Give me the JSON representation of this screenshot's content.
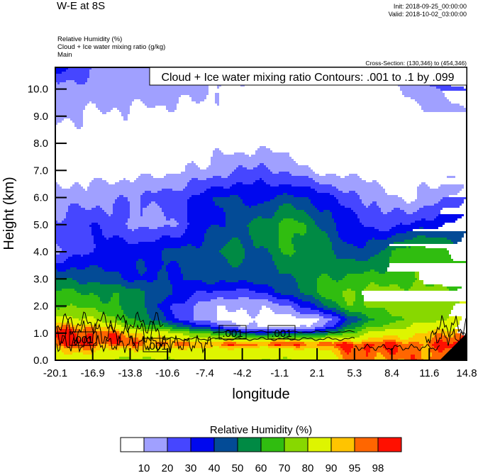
{
  "header": {
    "title": "W-E at 8S",
    "init": "Init: 2018-09-25_00:00:00",
    "valid": "Valid: 2018-10-02_03:00:00",
    "fields": [
      "Relative Humidity   (%)",
      "Cloud + Ice water mixing ratio   (g/kg)",
      "Main"
    ],
    "cross_section": "Cross-Section: (130,346) to (454,346)"
  },
  "chart_data": {
    "type": "heatmap",
    "title": "W-E at 8S",
    "contour_info": "Cloud + Ice water mixing ratio Contours: .001 to .1 by .099",
    "contour_labels": [
      ".001",
      ".001",
      ".001",
      ".001"
    ],
    "xlabel": "longitude",
    "ylabel": "Height (km)",
    "xlim": [
      -20.1,
      14.8
    ],
    "ylim": [
      0,
      10.8
    ],
    "x_ticks": [
      "-20.1",
      "-16.9",
      "-13.8",
      "-10.6",
      "-7.4",
      "-4.2",
      "-1.1",
      "2.1",
      "5.3",
      "8.4",
      "11.6",
      "14.8"
    ],
    "y_ticks": [
      "0.0",
      "1.0",
      "2.0",
      "3.0",
      "4.0",
      "5.0",
      "6.0",
      "7.0",
      "8.0",
      "9.0",
      "10.0"
    ],
    "grid_lon": [
      -20.1,
      -17.6,
      -15.1,
      -12.6,
      -10.1,
      -7.6,
      -5.1,
      -2.6,
      -0.1,
      2.3,
      4.8,
      7.3,
      9.8,
      12.3,
      14.8
    ],
    "grid_height_km": [
      0,
      0.4,
      0.6,
      0.75,
      1.0,
      1.25,
      1.5,
      2,
      2.5,
      3,
      4,
      5,
      6,
      7,
      8,
      9,
      10,
      10.8
    ],
    "rh_percent": [
      [
        88,
        82,
        80,
        75,
        82,
        85,
        82,
        80,
        80,
        82,
        95,
        96,
        95,
        97,
        99
      ],
      [
        92,
        94,
        90,
        90,
        88,
        88,
        88,
        88,
        88,
        90,
        97,
        99,
        96,
        97,
        99
      ],
      [
        98,
        99,
        97,
        97,
        97,
        96,
        98,
        98,
        99,
        98,
        99,
        99,
        97,
        98,
        99
      ],
      [
        99,
        99,
        98,
        95,
        90,
        85,
        85,
        85,
        88,
        85,
        88,
        94,
        92,
        95,
        99
      ],
      [
        99,
        99,
        96,
        90,
        80,
        70,
        50,
        40,
        45,
        45,
        70,
        85,
        88,
        92,
        99
      ],
      [
        95,
        96,
        85,
        65,
        55,
        35,
        15,
        8,
        8,
        12,
        55,
        70,
        80,
        85,
        93
      ],
      [
        85,
        82,
        72,
        55,
        35,
        15,
        8,
        6,
        6,
        8,
        40,
        62,
        72,
        78,
        90
      ],
      [
        70,
        68,
        62,
        50,
        30,
        15,
        10,
        12,
        20,
        45,
        68,
        74,
        76,
        76,
        82
      ],
      [
        62,
        60,
        58,
        52,
        40,
        30,
        25,
        30,
        45,
        62,
        72,
        74,
        74,
        72,
        74
      ],
      [
        52,
        48,
        42,
        38,
        40,
        42,
        44,
        45,
        50,
        60,
        62,
        65,
        68,
        66,
        64
      ],
      [
        18,
        28,
        35,
        38,
        42,
        45,
        55,
        48,
        62,
        55,
        42,
        48,
        70,
        62,
        55
      ],
      [
        22,
        30,
        25,
        15,
        20,
        35,
        45,
        55,
        65,
        50,
        35,
        25,
        30,
        38,
        45
      ],
      [
        15,
        15,
        18,
        22,
        25,
        35,
        42,
        35,
        45,
        35,
        25,
        15,
        8,
        15,
        30
      ],
      [
        5,
        5,
        5,
        6,
        8,
        12,
        18,
        25,
        15,
        8,
        5,
        5,
        5,
        5,
        5
      ],
      [
        5,
        5,
        5,
        5,
        5,
        5,
        5,
        5,
        5,
        5,
        5,
        5,
        5,
        5,
        5
      ],
      [
        12,
        9,
        8,
        7,
        6,
        6,
        5,
        5,
        5,
        5,
        5,
        5,
        5,
        10,
        20
      ],
      [
        15,
        15,
        15,
        15,
        15,
        12,
        8,
        5,
        5,
        5,
        5,
        5,
        10,
        22,
        30
      ],
      [
        35,
        25,
        15,
        15,
        15,
        15,
        12,
        8,
        8,
        8,
        8,
        8,
        15,
        28,
        40
      ]
    ],
    "colorbar": {
      "title": "Relative Humidity  (%)",
      "levels": [
        10,
        20,
        30,
        40,
        50,
        60,
        70,
        80,
        90,
        95,
        98
      ],
      "level_labels": [
        "10",
        "20",
        "30",
        "40",
        "50",
        "60",
        "70",
        "80",
        "90",
        "95",
        "98"
      ],
      "colors": [
        "#ffffff",
        "#a0a0ff",
        "#4646ff",
        "#0008ee",
        "#034b96",
        "#008a44",
        "#30bd10",
        "#88d800",
        "#def500",
        "#ffc400",
        "#ff6600",
        "#ff1000"
      ]
    },
    "grid": false
  }
}
